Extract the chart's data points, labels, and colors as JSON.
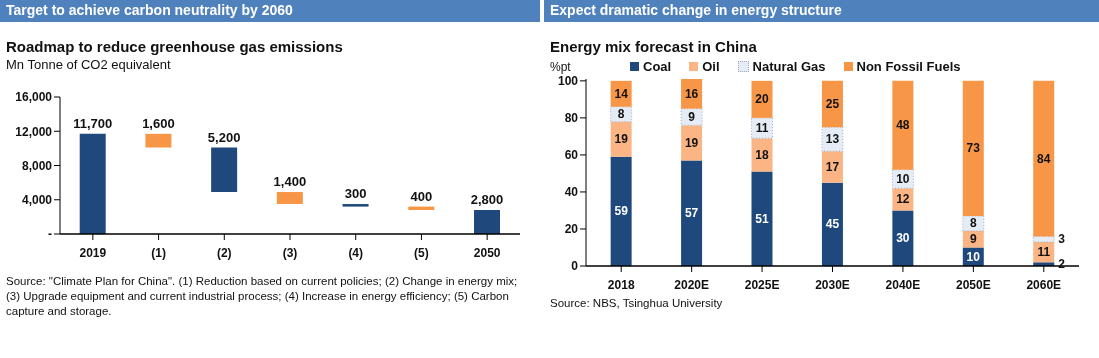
{
  "chart_data": [
    {
      "type": "bar",
      "title": "Target to achieve carbon neutrality by 2060",
      "subtitle": "Roadmap to reduce greenhouse gas emissions",
      "ylabel": "Mn Tonne of CO2 equivalent",
      "categories": [
        "2019",
        "(1)",
        "(2)",
        "(3)",
        "(4)",
        "(5)",
        "2050"
      ],
      "values": [
        11700,
        1600,
        5200,
        1400,
        300,
        400,
        2800
      ],
      "base": [
        0,
        10100,
        4900,
        3500,
        3200,
        2800,
        0
      ],
      "colors": [
        "#1f497d",
        "#f79646",
        "#1f497d",
        "#f79646",
        "#1f497d",
        "#f79646",
        "#1f497d"
      ],
      "value_labels": [
        "11,700",
        "1,600",
        "5,200",
        "1,400",
        "300",
        "400",
        "2,800"
      ],
      "ylim": [
        0,
        16000
      ],
      "yticks": [
        {
          "value": 0,
          "label": "-"
        },
        {
          "value": 4000,
          "label": "4,000"
        },
        {
          "value": 8000,
          "label": "8,000"
        },
        {
          "value": 12000,
          "label": "12,000"
        },
        {
          "value": 16000,
          "label": "16,000"
        }
      ],
      "annotations": [
        "Source: \"Climate Plan for China\". (1) Reduction based on current policies; (2) Change in energy mix; (3) Upgrade equipment and current industrial process; (4) Increase in energy efficiency; (5) Carbon capture and storage."
      ]
    },
    {
      "type": "bar",
      "title": "Expect dramatic change in energy structure",
      "subtitle": "Energy mix forecast in China",
      "ylabel": "%pt",
      "stacked": true,
      "categories": [
        "2018",
        "2020E",
        "2025E",
        "2030E",
        "2040E",
        "2050E",
        "2060E"
      ],
      "series": [
        {
          "name": "Coal",
          "color": "#1f497d",
          "values": [
            59,
            57,
            51,
            45,
            30,
            10,
            2
          ]
        },
        {
          "name": "Oil",
          "color": "#fbb584",
          "values": [
            19,
            19,
            18,
            17,
            12,
            9,
            11
          ]
        },
        {
          "name": "Natural Gas",
          "color": "#e6ecf5",
          "values": [
            8,
            9,
            11,
            13,
            10,
            8,
            3
          ]
        },
        {
          "name": "Non Fossil Fuels",
          "color": "#f79646",
          "values": [
            14,
            16,
            20,
            25,
            48,
            73,
            84
          ]
        }
      ],
      "ylim": [
        0,
        101
      ],
      "yticks": [
        0,
        20,
        40,
        60,
        80,
        100
      ],
      "legend": "top",
      "data_labels": true,
      "annotations": [
        "Source: NBS, Tsinghua University"
      ]
    }
  ]
}
